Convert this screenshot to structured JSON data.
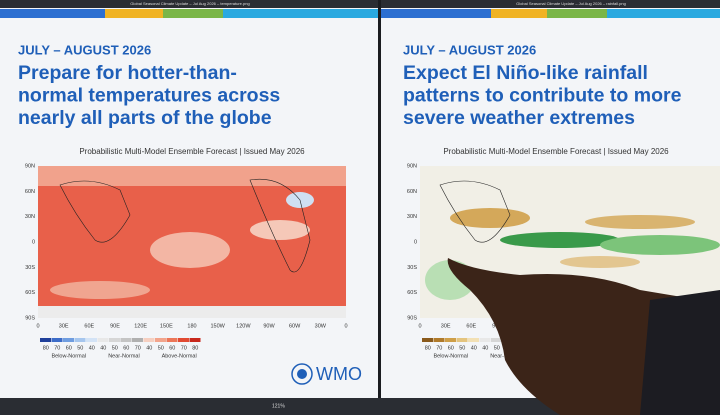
{
  "panels": [
    {
      "window_title": "Global Seasonal Climate Update – Jul Aug 2026 – temperature.png",
      "date": "JULY – AUGUST 2026",
      "headline_lines": [
        "Prepare for hotter-than-",
        "normal temperatures across",
        "nearly all parts of the globe"
      ],
      "map_title": "Probabilistic Multi-Model Ensemble Forecast | Issued May 2026",
      "lat_labels": [
        "90N",
        "60N",
        "30N",
        "0",
        "30S",
        "60S",
        "90S"
      ],
      "lon_labels": [
        "0",
        "30E",
        "60E",
        "90E",
        "120E",
        "150E",
        "180",
        "150W",
        "120W",
        "90W",
        "60W",
        "30W",
        "0"
      ],
      "legend_numbers": [
        80,
        70,
        60,
        50,
        40,
        40,
        50,
        60,
        70,
        40,
        50,
        60,
        70,
        80
      ],
      "legend_colors": [
        "#1f3f9a",
        "#3c6cc8",
        "#6f9de0",
        "#a6c6ee",
        "#d3e3f6",
        "#e8e8e8",
        "#d6d6d6",
        "#c4c4c4",
        "#b0b0b0",
        "#f6cfc0",
        "#f2a48c",
        "#ec7658",
        "#e14a32",
        "#c8281c"
      ],
      "legend_words": [
        "Below-Normal",
        "Near-Normal",
        "Above-Normal"
      ],
      "logo": "WMO",
      "zoom": "121%"
    },
    {
      "window_title": "Global Seasonal Climate Update – Jul Aug 2026 – rainfall.png",
      "date": "JULY – AUGUST 2026",
      "headline_lines": [
        "Expect El Niño-like rainfall",
        "patterns to contribute to more",
        "severe weather extremes"
      ],
      "map_title": "Probabilistic Multi-Model Ensemble Forecast | Issued May 2026",
      "lat_labels": [
        "90N",
        "60N",
        "30N",
        "0",
        "30S",
        "60S",
        "90S"
      ],
      "lon_labels": [
        "0",
        "30E",
        "60E",
        "90E"
      ],
      "legend_numbers": [
        80,
        70,
        60,
        50,
        40,
        40,
        50,
        60,
        70
      ],
      "legend_colors": [
        "#8a5a1c",
        "#b07a2a",
        "#cf9f48",
        "#e4c47e",
        "#f2e0b4",
        "#e8e8e8",
        "#d6d6d6",
        "#c4c4c4",
        "#b0b0b0"
      ],
      "legend_words": [
        "Below-Normal",
        "Near-Normal"
      ]
    }
  ]
}
